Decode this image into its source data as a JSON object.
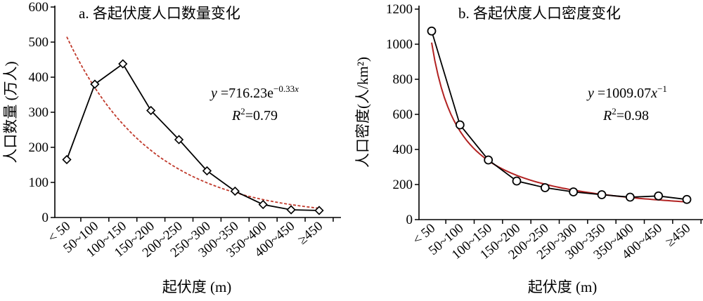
{
  "chart_data": [
    {
      "id": "a",
      "type": "line",
      "title": "a. 各起伏度人口数量变化",
      "xlabel": "起伏度 (m)",
      "ylabel": "人口数量 (万人)",
      "categories": [
        "< 50",
        "50~100",
        "100~150",
        "150~200",
        "200~250",
        "250~300",
        "300~350",
        "350~400",
        "400~450",
        "≥450"
      ],
      "ylim": [
        0,
        600
      ],
      "yticks": [
        "0",
        "100",
        "200",
        "300",
        "400",
        "500",
        "600"
      ],
      "series": [
        {
          "values": [
            165,
            380,
            438,
            305,
            222,
            133,
            75,
            37,
            22,
            20
          ],
          "marker": "diamond",
          "color": "#000000"
        }
      ],
      "fit": {
        "model": "exponential",
        "a": 716.23,
        "b": -0.33,
        "color": "#c0392b",
        "style": "dashed"
      },
      "equation": {
        "y": "y",
        "eq": " =716.23e",
        "exp_main": "−0.33",
        "exp_var": "x",
        "r": "R",
        "r_sup": "2",
        "r_val": "=0.79"
      }
    },
    {
      "id": "b",
      "type": "line",
      "title": "b. 各起伏度人口密度变化",
      "xlabel": "起伏度 (m)",
      "ylabel": "人口密度(人/km²)",
      "categories": [
        "< 50",
        "50~100",
        "100~150",
        "150~200",
        "200~250",
        "250~300",
        "300~350",
        "350~400",
        "400~450",
        "≥450"
      ],
      "ylim": [
        0,
        1200
      ],
      "yticks": [
        "0",
        "200",
        "400",
        "600",
        "800",
        "1000",
        "1200"
      ],
      "series": [
        {
          "values": [
            1075,
            540,
            340,
            220,
            182,
            158,
            142,
            128,
            135,
            115
          ],
          "marker": "circle",
          "color": "#000000"
        }
      ],
      "fit": {
        "model": "power",
        "a": 1009.07,
        "b": -1,
        "color": "#b22222",
        "style": "solid"
      },
      "equation": {
        "y": "y",
        "eq": " =1009.07",
        "x": "x",
        "exp": "−1",
        "r": "R",
        "r_sup": "2",
        "r_val": "=0.98"
      }
    }
  ]
}
